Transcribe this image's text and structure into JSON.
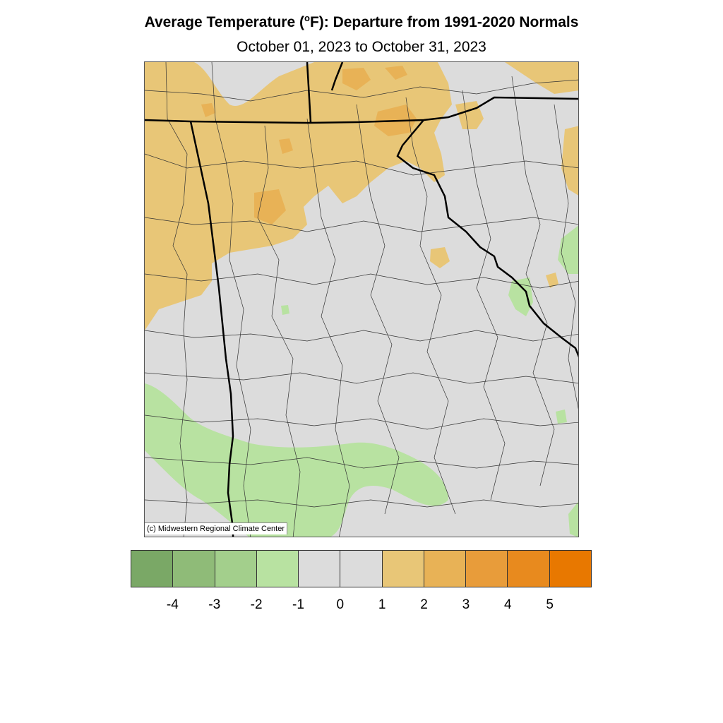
{
  "header": {
    "title_pre": "Average Temperature (",
    "title_degree": "o",
    "title_post": "F): Departure from 1991-2020 Normals",
    "subtitle": "October 01, 2023 to October 31, 2023"
  },
  "map": {
    "credit": "(c) Midwestern Regional Climate Center"
  },
  "legend": {
    "colors": [
      "#7aa866",
      "#8fbb78",
      "#a3cf8c",
      "#b8e2a1",
      "#dcdcdc",
      "#dcdcdc",
      "#e8c677",
      "#e8b256",
      "#e89c3a",
      "#e88a1e",
      "#e87800"
    ],
    "labels": [
      "-4",
      "-3",
      "-2",
      "-1",
      "0",
      "1",
      "2",
      "3",
      "4",
      "5"
    ]
  }
}
